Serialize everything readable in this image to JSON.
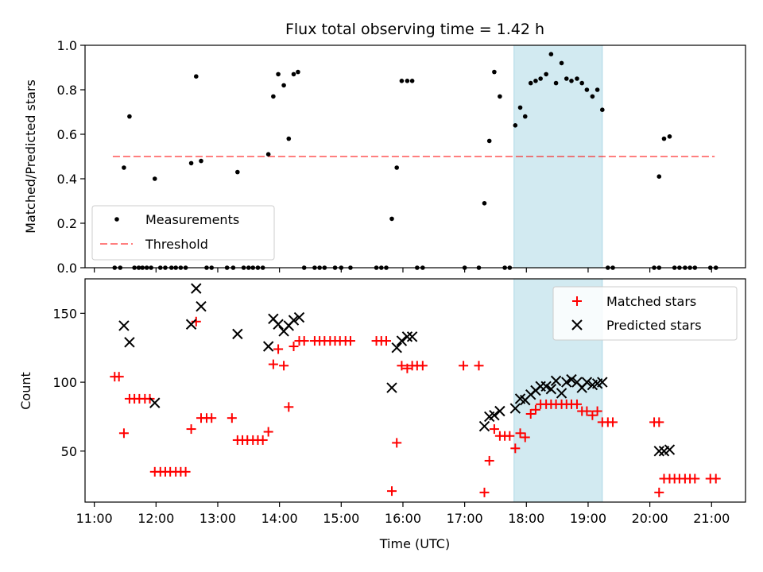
{
  "chart_data": [
    {
      "type": "scatter",
      "title": "Flux total observing time = 1.42 h",
      "ylabel": "Matched/Predicted stars",
      "ylim": [
        0,
        1.0
      ],
      "yticks": [
        "0.0",
        "0.2",
        "0.4",
        "0.6",
        "0.8",
        "1.0"
      ],
      "xlim_hours": [
        10.85,
        21.55
      ],
      "highlight_span_hours": [
        17.8,
        19.23
      ],
      "highlight_color": "#add8e6",
      "legend": {
        "position": "lower-left",
        "entries": [
          "Measurements",
          "Threshold"
        ]
      },
      "threshold": {
        "name": "Threshold",
        "y": 0.5,
        "x_range_hours": [
          11.3,
          21.05
        ],
        "color": "#ff0000",
        "style": "dashed"
      },
      "series": [
        {
          "name": "Measurements",
          "color": "#000000",
          "points": [
            [
              11.33,
              0
            ],
            [
              11.42,
              0
            ],
            [
              11.48,
              0.45
            ],
            [
              11.57,
              0.68
            ],
            [
              11.65,
              0
            ],
            [
              11.72,
              0
            ],
            [
              11.78,
              0
            ],
            [
              11.85,
              0
            ],
            [
              11.92,
              0
            ],
            [
              11.98,
              0.4
            ],
            [
              12.07,
              0
            ],
            [
              12.15,
              0
            ],
            [
              12.25,
              0
            ],
            [
              12.32,
              0
            ],
            [
              12.4,
              0
            ],
            [
              12.48,
              0
            ],
            [
              12.57,
              0.47
            ],
            [
              12.65,
              0.86
            ],
            [
              12.73,
              0.48
            ],
            [
              12.82,
              0
            ],
            [
              12.9,
              0
            ],
            [
              13.15,
              0
            ],
            [
              13.25,
              0
            ],
            [
              13.32,
              0.43
            ],
            [
              13.42,
              0
            ],
            [
              13.5,
              0
            ],
            [
              13.57,
              0
            ],
            [
              13.65,
              0
            ],
            [
              13.73,
              0
            ],
            [
              13.82,
              0.51
            ],
            [
              13.9,
              0.77
            ],
            [
              13.98,
              0.87
            ],
            [
              14.07,
              0.82
            ],
            [
              14.15,
              0.58
            ],
            [
              14.23,
              0.87
            ],
            [
              14.3,
              0.88
            ],
            [
              14.4,
              0
            ],
            [
              14.57,
              0
            ],
            [
              14.65,
              0
            ],
            [
              14.73,
              0
            ],
            [
              14.9,
              0
            ],
            [
              15.0,
              0
            ],
            [
              15.15,
              0
            ],
            [
              15.57,
              0
            ],
            [
              15.65,
              0
            ],
            [
              15.73,
              0
            ],
            [
              15.82,
              0.22
            ],
            [
              15.9,
              0.45
            ],
            [
              15.98,
              0.84
            ],
            [
              16.07,
              0.84
            ],
            [
              16.15,
              0.84
            ],
            [
              16.23,
              0
            ],
            [
              16.32,
              0
            ],
            [
              17.0,
              0
            ],
            [
              17.23,
              0
            ],
            [
              17.32,
              0.29
            ],
            [
              17.4,
              0.57
            ],
            [
              17.48,
              0.88
            ],
            [
              17.57,
              0.77
            ],
            [
              17.65,
              0
            ],
            [
              17.73,
              0
            ],
            [
              17.82,
              0.64
            ],
            [
              17.9,
              0.72
            ],
            [
              17.98,
              0.68
            ],
            [
              18.07,
              0.83
            ],
            [
              18.15,
              0.84
            ],
            [
              18.23,
              0.85
            ],
            [
              18.32,
              0.87
            ],
            [
              18.4,
              0.96
            ],
            [
              18.48,
              0.83
            ],
            [
              18.57,
              0.92
            ],
            [
              18.65,
              0.85
            ],
            [
              18.73,
              0.84
            ],
            [
              18.82,
              0.85
            ],
            [
              18.9,
              0.83
            ],
            [
              18.98,
              0.8
            ],
            [
              19.07,
              0.77
            ],
            [
              19.15,
              0.8
            ],
            [
              19.23,
              0.71
            ],
            [
              19.32,
              0
            ],
            [
              19.4,
              0
            ],
            [
              20.07,
              0
            ],
            [
              20.15,
              0
            ],
            [
              20.15,
              0.41
            ],
            [
              20.23,
              0.58
            ],
            [
              20.32,
              0.59
            ],
            [
              20.4,
              0
            ],
            [
              20.48,
              0
            ],
            [
              20.57,
              0
            ],
            [
              20.65,
              0
            ],
            [
              20.73,
              0
            ],
            [
              20.98,
              0
            ],
            [
              21.07,
              0
            ]
          ]
        }
      ]
    },
    {
      "type": "scatter",
      "xlabel": "Time (UTC)",
      "ylabel": "Count",
      "ylim": [
        13,
        175
      ],
      "yticks": [
        "50",
        "100",
        "150"
      ],
      "xticks": [
        "11:00",
        "12:00",
        "13:00",
        "14:00",
        "15:00",
        "16:00",
        "17:00",
        "18:00",
        "19:00",
        "20:00",
        "21:00"
      ],
      "xlim_hours": [
        10.85,
        21.55
      ],
      "highlight_span_hours": [
        17.8,
        19.23
      ],
      "highlight_color": "#add8e6",
      "legend": {
        "position": "top-right",
        "entries": [
          "Matched stars",
          "Predicted stars"
        ]
      },
      "series": [
        {
          "name": "Matched stars",
          "marker": "plus",
          "color": "#ff0000",
          "points": [
            [
              11.33,
              104
            ],
            [
              11.4,
              104
            ],
            [
              11.48,
              63
            ],
            [
              11.57,
              88
            ],
            [
              11.65,
              88
            ],
            [
              11.73,
              88
            ],
            [
              11.82,
              88
            ],
            [
              11.9,
              88
            ],
            [
              11.98,
              35
            ],
            [
              12.07,
              35
            ],
            [
              12.15,
              35
            ],
            [
              12.23,
              35
            ],
            [
              12.32,
              35
            ],
            [
              12.4,
              35
            ],
            [
              12.48,
              35
            ],
            [
              12.57,
              66
            ],
            [
              12.65,
              144
            ],
            [
              12.73,
              74
            ],
            [
              12.82,
              74
            ],
            [
              12.9,
              74
            ],
            [
              13.23,
              74
            ],
            [
              13.32,
              58
            ],
            [
              13.4,
              58
            ],
            [
              13.48,
              58
            ],
            [
              13.57,
              58
            ],
            [
              13.65,
              58
            ],
            [
              13.73,
              58
            ],
            [
              13.82,
              64
            ],
            [
              13.9,
              113
            ],
            [
              13.98,
              124
            ],
            [
              14.07,
              112
            ],
            [
              14.15,
              82
            ],
            [
              14.23,
              126
            ],
            [
              14.32,
              130
            ],
            [
              14.4,
              130
            ],
            [
              14.57,
              130
            ],
            [
              14.65,
              130
            ],
            [
              14.73,
              130
            ],
            [
              14.82,
              130
            ],
            [
              14.9,
              130
            ],
            [
              14.98,
              130
            ],
            [
              15.07,
              130
            ],
            [
              15.15,
              130
            ],
            [
              15.57,
              130
            ],
            [
              15.65,
              130
            ],
            [
              15.73,
              130
            ],
            [
              15.82,
              21
            ],
            [
              15.9,
              56
            ],
            [
              15.98,
              112
            ],
            [
              16.07,
              110
            ],
            [
              16.15,
              112
            ],
            [
              16.23,
              112
            ],
            [
              16.32,
              112
            ],
            [
              16.98,
              112
            ],
            [
              17.23,
              112
            ],
            [
              17.32,
              20
            ],
            [
              17.4,
              43
            ],
            [
              17.48,
              66
            ],
            [
              17.57,
              61
            ],
            [
              17.65,
              61
            ],
            [
              17.73,
              61
            ],
            [
              17.82,
              52
            ],
            [
              17.9,
              63
            ],
            [
              17.98,
              60
            ],
            [
              18.07,
              77
            ],
            [
              18.15,
              80
            ],
            [
              18.23,
              84
            ],
            [
              18.32,
              84
            ],
            [
              18.4,
              84
            ],
            [
              18.48,
              84
            ],
            [
              18.57,
              84
            ],
            [
              18.65,
              84
            ],
            [
              18.73,
              84
            ],
            [
              18.82,
              84
            ],
            [
              18.9,
              79
            ],
            [
              18.98,
              79
            ],
            [
              19.07,
              76
            ],
            [
              19.15,
              79
            ],
            [
              19.23,
              71
            ],
            [
              19.32,
              71
            ],
            [
              19.4,
              71
            ],
            [
              20.07,
              71
            ],
            [
              20.15,
              71
            ],
            [
              20.15,
              20
            ],
            [
              20.23,
              30
            ],
            [
              20.32,
              30
            ],
            [
              20.4,
              30
            ],
            [
              20.48,
              30
            ],
            [
              20.57,
              30
            ],
            [
              20.65,
              30
            ],
            [
              20.73,
              30
            ],
            [
              20.98,
              30
            ],
            [
              21.07,
              30
            ]
          ]
        },
        {
          "name": "Predicted stars",
          "marker": "x",
          "color": "#000000",
          "points": [
            [
              11.48,
              141
            ],
            [
              11.57,
              129
            ],
            [
              11.98,
              85
            ],
            [
              12.57,
              142
            ],
            [
              12.65,
              168
            ],
            [
              12.73,
              155
            ],
            [
              13.32,
              135
            ],
            [
              13.82,
              126
            ],
            [
              13.9,
              146
            ],
            [
              13.98,
              142
            ],
            [
              14.07,
              137
            ],
            [
              14.15,
              141
            ],
            [
              14.23,
              145
            ],
            [
              14.32,
              147
            ],
            [
              15.82,
              96
            ],
            [
              15.9,
              125
            ],
            [
              15.98,
              130
            ],
            [
              16.07,
              133
            ],
            [
              16.15,
              133
            ],
            [
              17.32,
              68
            ],
            [
              17.4,
              75
            ],
            [
              17.48,
              76
            ],
            [
              17.57,
              79
            ],
            [
              17.82,
              81
            ],
            [
              17.9,
              88
            ],
            [
              17.98,
              87
            ],
            [
              18.07,
              91
            ],
            [
              18.15,
              94
            ],
            [
              18.23,
              97
            ],
            [
              18.32,
              97
            ],
            [
              18.4,
              95
            ],
            [
              18.48,
              101
            ],
            [
              18.57,
              92
            ],
            [
              18.65,
              100
            ],
            [
              18.73,
              102
            ],
            [
              18.82,
              100
            ],
            [
              18.9,
              96
            ],
            [
              18.98,
              100
            ],
            [
              19.07,
              98
            ],
            [
              19.15,
              99
            ],
            [
              19.23,
              100
            ],
            [
              20.15,
              50
            ],
            [
              20.23,
              50
            ],
            [
              20.32,
              51
            ]
          ]
        }
      ]
    }
  ]
}
